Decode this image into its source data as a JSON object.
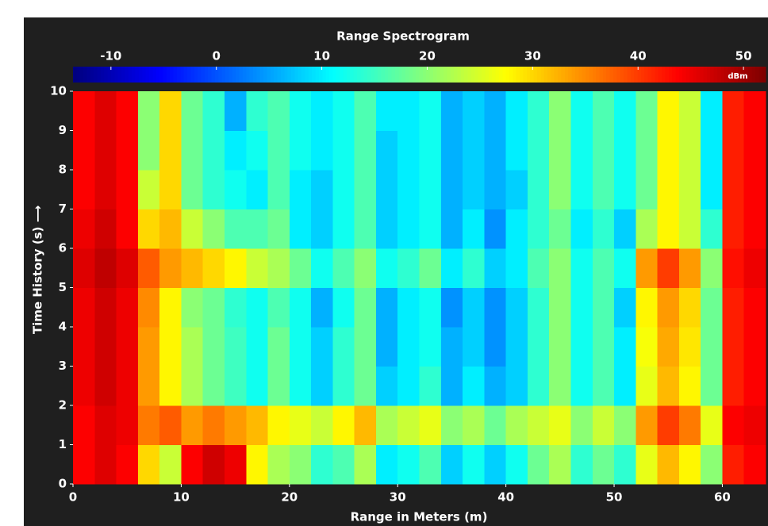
{
  "chart_data": {
    "type": "heatmap",
    "title": "Range Spectrogram",
    "xlabel": "Range in Meters (m)",
    "ylabel": "Time History (s) ⟶",
    "colorbar_label": "dBm",
    "xbins": [
      0,
      2,
      4,
      6,
      8,
      10,
      12,
      14,
      16,
      18,
      20,
      22,
      24,
      26,
      28,
      30,
      32,
      34,
      36,
      38,
      40,
      42,
      44,
      46,
      48,
      50,
      52,
      54,
      56,
      58,
      60,
      62,
      64
    ],
    "ybins": [
      0,
      1,
      2,
      3,
      4,
      5,
      6,
      7,
      8,
      9,
      10
    ],
    "values": [
      [
        44,
        46,
        44,
        30,
        24,
        44,
        47,
        45,
        28,
        22,
        20,
        14,
        16,
        22,
        10,
        12,
        16,
        8,
        12,
        8,
        12,
        18,
        22,
        14,
        18,
        14,
        26,
        32,
        28,
        20,
        42,
        44
      ],
      [
        44,
        46,
        45,
        36,
        38,
        34,
        36,
        34,
        32,
        28,
        26,
        24,
        28,
        32,
        22,
        24,
        26,
        20,
        22,
        18,
        22,
        24,
        26,
        20,
        24,
        20,
        34,
        40,
        36,
        26,
        44,
        45
      ],
      [
        45,
        47,
        45,
        34,
        28,
        22,
        18,
        15,
        12,
        18,
        12,
        8,
        14,
        18,
        8,
        10,
        14,
        6,
        10,
        6,
        8,
        14,
        20,
        12,
        16,
        10,
        26,
        32,
        28,
        18,
        42,
        44
      ],
      [
        45,
        47,
        45,
        34,
        28,
        22,
        18,
        15,
        12,
        18,
        12,
        8,
        14,
        18,
        6,
        10,
        12,
        6,
        8,
        4,
        8,
        14,
        20,
        12,
        16,
        10,
        27,
        33,
        29,
        18,
        42,
        44
      ],
      [
        45,
        47,
        45,
        35,
        28,
        20,
        18,
        14,
        12,
        16,
        12,
        6,
        12,
        18,
        6,
        10,
        12,
        4,
        8,
        4,
        8,
        14,
        20,
        12,
        16,
        8,
        28,
        34,
        30,
        18,
        42,
        44
      ],
      [
        46,
        48,
        46,
        38,
        34,
        32,
        30,
        28,
        24,
        22,
        18,
        12,
        16,
        20,
        12,
        14,
        18,
        10,
        14,
        8,
        10,
        16,
        20,
        12,
        16,
        12,
        34,
        40,
        34,
        20,
        43,
        45
      ],
      [
        45,
        47,
        44,
        30,
        32,
        24,
        20,
        16,
        16,
        18,
        10,
        8,
        12,
        16,
        8,
        10,
        12,
        6,
        10,
        4,
        10,
        14,
        18,
        10,
        14,
        8,
        22,
        28,
        24,
        14,
        42,
        44
      ],
      [
        44,
        46,
        44,
        24,
        30,
        18,
        14,
        12,
        10,
        16,
        10,
        8,
        12,
        16,
        8,
        10,
        12,
        6,
        8,
        6,
        8,
        14,
        20,
        12,
        16,
        12,
        18,
        28,
        24,
        10,
        42,
        44
      ],
      [
        44,
        46,
        44,
        20,
        30,
        18,
        14,
        10,
        12,
        16,
        12,
        10,
        12,
        16,
        8,
        10,
        12,
        6,
        8,
        6,
        10,
        14,
        20,
        12,
        16,
        12,
        18,
        28,
        24,
        10,
        42,
        44
      ],
      [
        44,
        46,
        44,
        20,
        30,
        18,
        14,
        6,
        14,
        16,
        12,
        10,
        12,
        16,
        10,
        10,
        12,
        6,
        8,
        6,
        10,
        14,
        20,
        12,
        16,
        12,
        18,
        28,
        24,
        10,
        42,
        44
      ]
    ],
    "xlim": [
      0,
      64
    ],
    "ylim": [
      0,
      10
    ],
    "zlim": [
      -13.6,
      52.1
    ],
    "xticks": [
      0,
      10,
      20,
      30,
      40,
      50,
      60
    ],
    "yticks": [
      0,
      1,
      2,
      3,
      4,
      5,
      6,
      7,
      8,
      9,
      10
    ],
    "zticks": [
      -10,
      0,
      10,
      20,
      30,
      40,
      50
    ]
  }
}
